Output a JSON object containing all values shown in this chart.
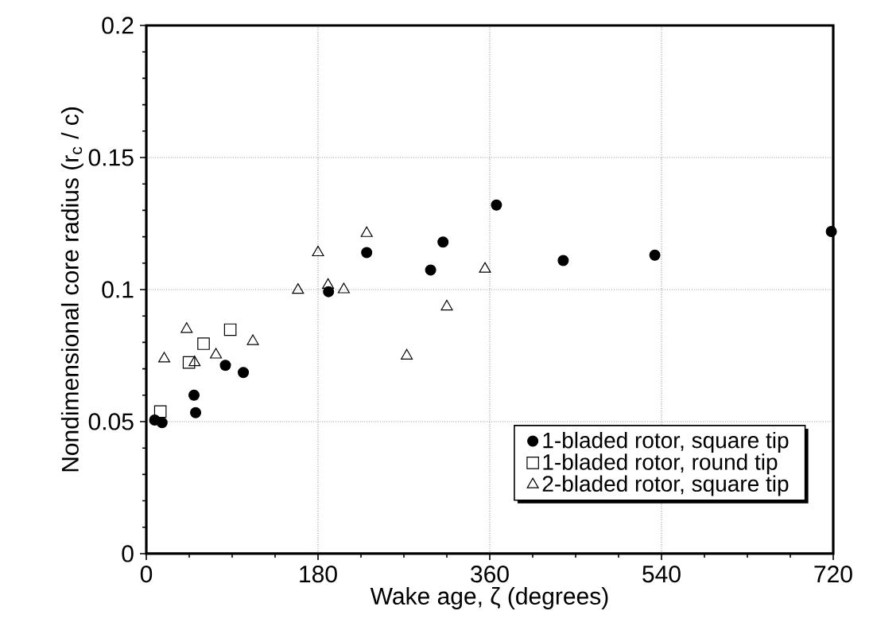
{
  "chart_data": {
    "type": "scatter",
    "xlabel": "Wake age, ζ  (degrees)",
    "ylabel": "Nondimensional core radius (r$_{c}$ / c)",
    "xlim": [
      0,
      720
    ],
    "ylim": [
      0,
      0.2
    ],
    "xticks": [
      0,
      180,
      360,
      540,
      720
    ],
    "yticks": [
      0,
      0.05,
      0.1,
      0.15,
      0.2
    ],
    "grid": true,
    "legend": "bottom right",
    "series": [
      {
        "name": "1-bladed rotor, square tip",
        "color": "#000000",
        "marker": "circle",
        "x": [
          8.8,
          16.5,
          50,
          51.7,
          82.9,
          101.7,
          191,
          231,
          298,
          311,
          367,
          437,
          533,
          718
        ],
        "values": [
          0.0506,
          0.0496,
          0.06,
          0.0534,
          0.0713,
          0.0686,
          0.0992,
          0.114,
          0.1074,
          0.118,
          0.132,
          0.111,
          0.113,
          0.122
        ]
      },
      {
        "name": "1-bladed rotor, round tip",
        "color": "#000000",
        "marker": "square",
        "x": [
          14.7,
          44.7,
          60,
          88
        ],
        "values": [
          0.0538,
          0.0724,
          0.0795,
          0.0848
        ]
      },
      {
        "name": "2-bladed rotor, square tip",
        "color": "#000000",
        "marker": "triangle",
        "x": [
          18.8,
          42.3,
          50.6,
          73,
          111.7,
          159,
          180,
          190.5,
          207,
          231,
          273,
          315,
          355
        ],
        "values": [
          0.0738,
          0.085,
          0.0724,
          0.0753,
          0.0804,
          0.0998,
          0.114,
          0.1017,
          0.1,
          0.1213,
          0.0749,
          0.0935,
          0.1078
        ]
      }
    ]
  }
}
